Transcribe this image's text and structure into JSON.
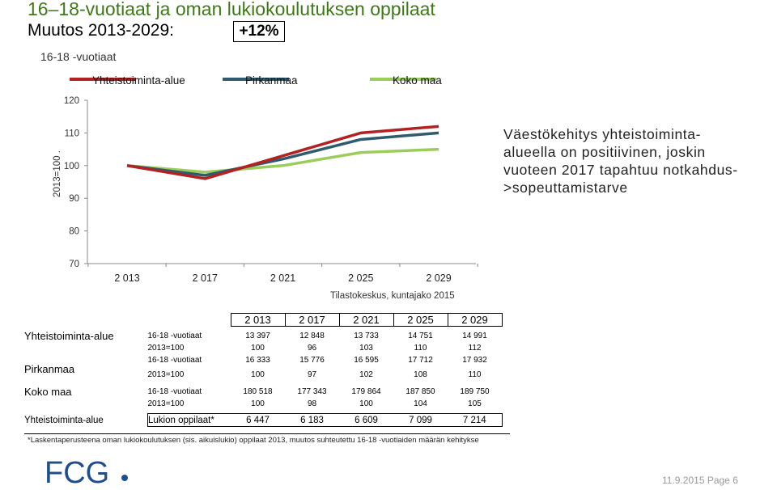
{
  "title": "16–18-vuotiaat ja oman lukiokoulutuksen oppilaat",
  "subtitle": "Muutos 2013-2029:",
  "change": "+12%",
  "note": "Väestökehitys yhteistoiminta-alueella on positiivinen, joskin vuoteen 2017 tapahtuu notkahdus->sopeuttamistarve",
  "source": "Tilastokeskus, kuntajako 2015",
  "chart_data": {
    "type": "line",
    "title": "16-18 -vuotiaat",
    "ylabel": "2013=100 .",
    "xlabel": "",
    "ylim": [
      70,
      120
    ],
    "yticks": [
      70,
      80,
      90,
      100,
      110,
      120
    ],
    "categories": [
      "2 013",
      "2 017",
      "2 021",
      "2 025",
      "2 029"
    ],
    "x": [
      2013,
      2017,
      2021,
      2025,
      2029
    ],
    "legend_position": "top",
    "grid": false,
    "series": [
      {
        "name": "Yhteistoiminta-alue",
        "color": "#b22222",
        "values": [
          100,
          96,
          103,
          110,
          112
        ]
      },
      {
        "name": "Pirkanmaa",
        "color": "#2e5b6e",
        "values": [
          100,
          97,
          102,
          108,
          110
        ]
      },
      {
        "name": "Koko maa",
        "color": "#9ccd5a",
        "values": [
          100,
          98,
          100,
          104,
          105
        ]
      }
    ]
  },
  "table": {
    "years": [
      "2 013",
      "2 017",
      "2 021",
      "2 025",
      "2 029"
    ],
    "groups": [
      {
        "name": "Yhteistoiminta-alue",
        "rows": [
          {
            "label": "16-18 -vuotiaat",
            "values": [
              "13 397",
              "12 848",
              "13 733",
              "14 751",
              "14 991"
            ]
          },
          {
            "label": "2013=100",
            "values": [
              "100",
              "96",
              "103",
              "110",
              "112"
            ]
          }
        ]
      },
      {
        "name": "Pirkanmaa",
        "rows": [
          {
            "label": "16-18 -vuotiaat",
            "values": [
              "16 333",
              "15 776",
              "16 595",
              "17 712",
              "17 932"
            ]
          },
          {
            "label": "2013=100",
            "values": [
              "100",
              "97",
              "102",
              "108",
              "110"
            ]
          }
        ]
      },
      {
        "name": "Koko maa",
        "rows": [
          {
            "label": "16-18 -vuotiaat",
            "values": [
              "180 518",
              "177 343",
              "179 864",
              "187 850",
              "189 750"
            ]
          },
          {
            "label": "2013=100",
            "values": [
              "100",
              "98",
              "100",
              "104",
              "105"
            ]
          }
        ]
      }
    ],
    "lukio": {
      "group": "Yhteistoiminta-alue",
      "label": "Lukion oppilaat*",
      "values": [
        "6 447",
        "6 183",
        "6 609",
        "7 099",
        "7 214"
      ]
    }
  },
  "footnote": "*Laskentaperusteena oman lukiokoulutuksen (sis. aikuislukio) oppilaat 2013, muutos suhteutettu 16-18 -vuotiaiden määrän kehitykse",
  "logo_text": "FCG",
  "footer": {
    "date": "11.9.2015",
    "page": "Page 6"
  },
  "colors": {
    "title": "#3d7a16",
    "marker": "#2e7d1a"
  }
}
